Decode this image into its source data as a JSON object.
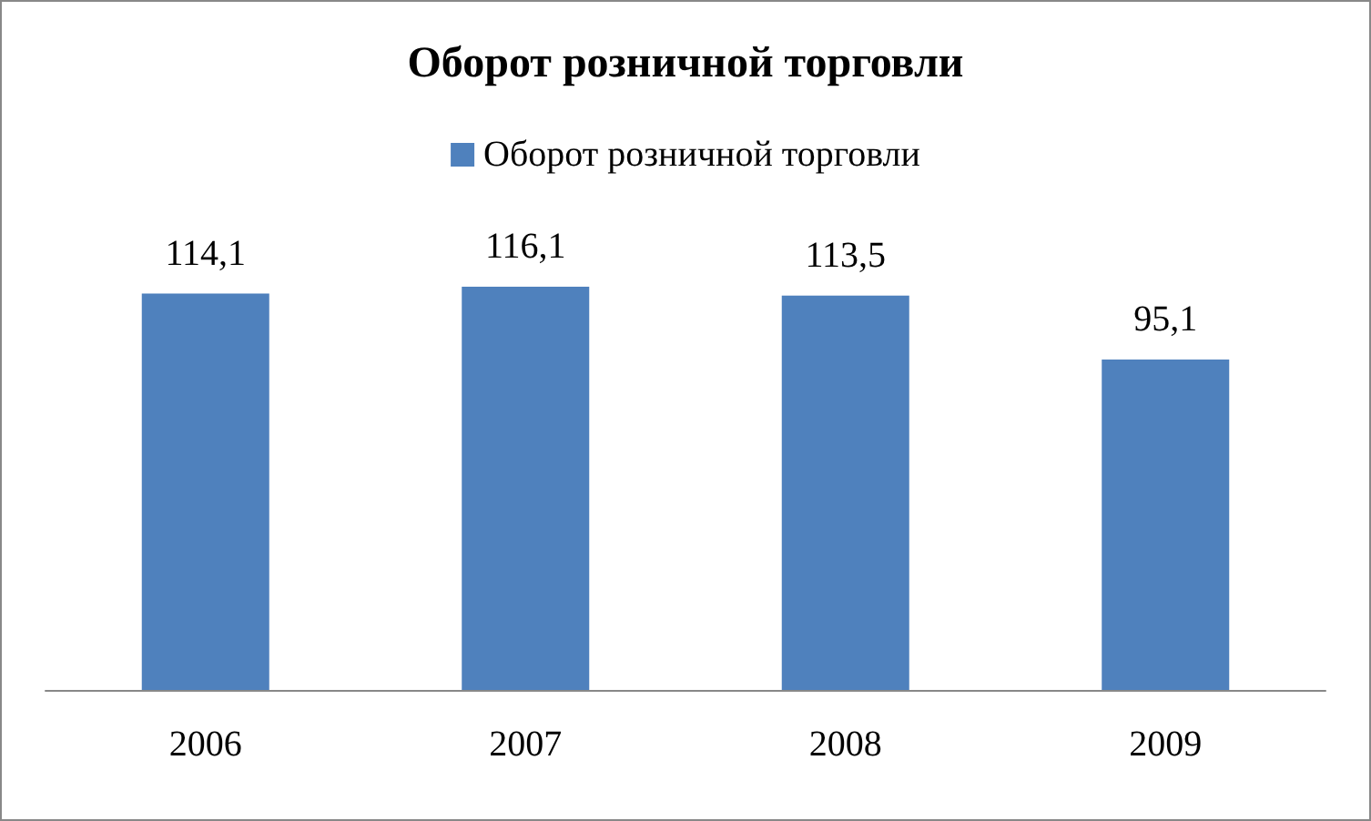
{
  "chart_data": {
    "type": "bar",
    "title": "Оборот розничной торговли",
    "categories": [
      "2006",
      "2007",
      "2008",
      "2009"
    ],
    "series": [
      {
        "name": "Оборот розничной торговли",
        "color": "#4f81bd",
        "values": [
          114.1,
          116.1,
          113.5,
          95.1
        ],
        "value_labels": [
          "114,1",
          "116,1",
          "113,5",
          "95,1"
        ]
      }
    ],
    "legend": "top",
    "grid": false
  }
}
